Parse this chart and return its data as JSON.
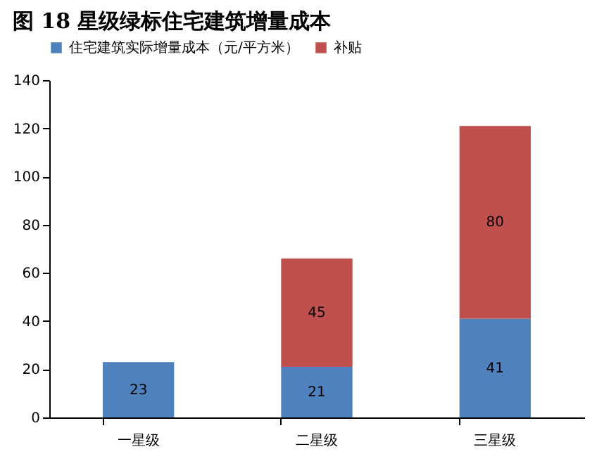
{
  "chart_data": {
    "type": "bar",
    "title": "图 18  星级绿标住宅建筑增量成本",
    "categories": [
      "一星级",
      "二星级",
      "三星级"
    ],
    "series": [
      {
        "name": "住宅建筑实际增量成本（元/平方米）",
        "color": "#4f81bd",
        "values": [
          23,
          21,
          41
        ]
      },
      {
        "name": "补贴",
        "color": "#c0504d",
        "values": [
          null,
          45,
          80
        ]
      }
    ],
    "stacked": true,
    "ylim": [
      0,
      140
    ],
    "yticks": [
      0,
      20,
      40,
      60,
      80,
      100,
      120,
      140
    ],
    "grid": false,
    "legend": "top",
    "data_labels": true
  }
}
